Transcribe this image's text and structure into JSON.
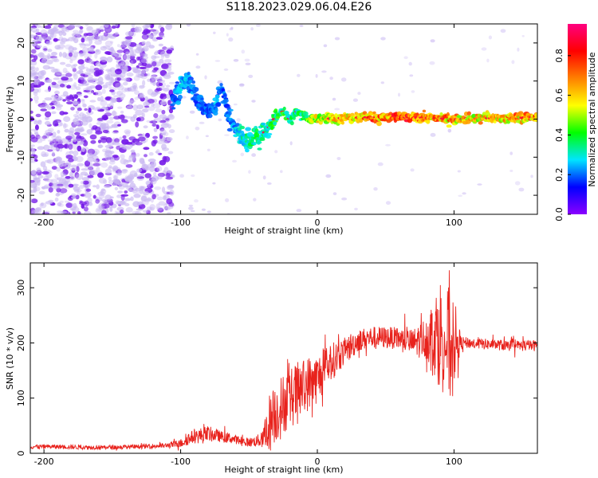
{
  "title": "S118.2023.029.06.04.E26",
  "colors": {
    "snr_line": "#e8221c",
    "axis": "#000000",
    "cloud_low": "#c9b8f2",
    "cloud_high": "#7418e8"
  },
  "chart_data": [
    {
      "type": "heatmap",
      "xlabel": "Height of straight line (km)",
      "ylabel": "Frequency (Hz)",
      "xlim": [
        -210,
        161
      ],
      "ylim": [
        -25,
        25
      ],
      "x_ticks": [
        -200,
        -100,
        0,
        100
      ],
      "y_ticks": [
        -20,
        -10,
        0,
        10,
        20
      ],
      "colorbar": {
        "label": "Normalized spectral amplitude",
        "range": [
          0,
          0.96
        ],
        "ticks": [
          0.0,
          0.2,
          0.4,
          0.6,
          0.8
        ],
        "colormap": [
          "#8b00ff",
          "#0000ff",
          "#00e5ff",
          "#00ff00",
          "#ffff00",
          "#ff8000",
          "#ff0000",
          "#ff0080"
        ]
      },
      "noise_region": {
        "x": [
          -210,
          -106
        ],
        "freq": [
          -25,
          25
        ],
        "amplitude": 0.1
      },
      "signal_track": {
        "x": [
          -106,
          -100,
          -95,
          -90,
          -85,
          -80,
          -75,
          -70,
          -65,
          -60,
          -55,
          -50,
          -45,
          -40,
          -35,
          -30,
          -25,
          -20,
          -15,
          -10,
          -5,
          0,
          20,
          40,
          60,
          80,
          100,
          120,
          140,
          161
        ],
        "freq": [
          5,
          8,
          11,
          7,
          4,
          2,
          3,
          8,
          1,
          -2,
          -5,
          -6,
          -5,
          -4,
          -2,
          1,
          2,
          0,
          2,
          1,
          0,
          0,
          0.3,
          0.5,
          0.5,
          0.3,
          0,
          0.2,
          0.3,
          0.5
        ],
        "amplitude": [
          0.2,
          0.25,
          0.25,
          0.2,
          0.2,
          0.2,
          0.25,
          0.2,
          0.2,
          0.25,
          0.3,
          0.35,
          0.35,
          0.35,
          0.35,
          0.4,
          0.4,
          0.35,
          0.35,
          0.4,
          0.5,
          0.55,
          0.65,
          0.7,
          0.75,
          0.7,
          0.65,
          0.6,
          0.65,
          0.7
        ]
      }
    },
    {
      "type": "line",
      "xlabel": "Height of straight line (km)",
      "ylabel": "SNR (10 * v/v)",
      "xlim": [
        -210,
        161
      ],
      "ylim": [
        0,
        345
      ],
      "x_ticks": [
        -200,
        -100,
        0,
        100
      ],
      "y_ticks": [
        0,
        100,
        200,
        300
      ],
      "series": [
        {
          "x": [
            -210,
            -190,
            -170,
            -150,
            -130,
            -110,
            -100,
            -95,
            -90,
            -85,
            -80,
            -75,
            -70,
            -65,
            -60,
            -55,
            -50,
            -45,
            -40,
            -38,
            -35,
            -30,
            -25,
            -20,
            -15,
            -10,
            -5,
            0,
            5,
            10,
            15,
            20,
            25,
            30,
            35,
            40,
            50,
            60,
            70,
            80,
            85,
            90,
            95,
            98,
            100,
            105,
            110,
            120,
            130,
            140,
            150,
            161
          ],
          "y": [
            12,
            12,
            11,
            11,
            12,
            14,
            18,
            26,
            30,
            32,
            35,
            33,
            30,
            28,
            25,
            22,
            20,
            22,
            25,
            35,
            55,
            75,
            90,
            100,
            110,
            120,
            130,
            135,
            150,
            165,
            175,
            185,
            195,
            205,
            208,
            210,
            210,
            208,
            200,
            210,
            215,
            220,
            200,
            190,
            205,
            200,
            200,
            198,
            197,
            195,
            195,
            195
          ],
          "amp": [
            4,
            4,
            4,
            4,
            4,
            5,
            8,
            12,
            12,
            15,
            15,
            12,
            10,
            10,
            8,
            8,
            8,
            10,
            15,
            35,
            55,
            55,
            55,
            55,
            55,
            50,
            50,
            45,
            40,
            35,
            30,
            25,
            25,
            20,
            20,
            20,
            20,
            20,
            25,
            40,
            70,
            100,
            110,
            100,
            80,
            12,
            10,
            10,
            10,
            10,
            10,
            10
          ]
        }
      ]
    }
  ]
}
